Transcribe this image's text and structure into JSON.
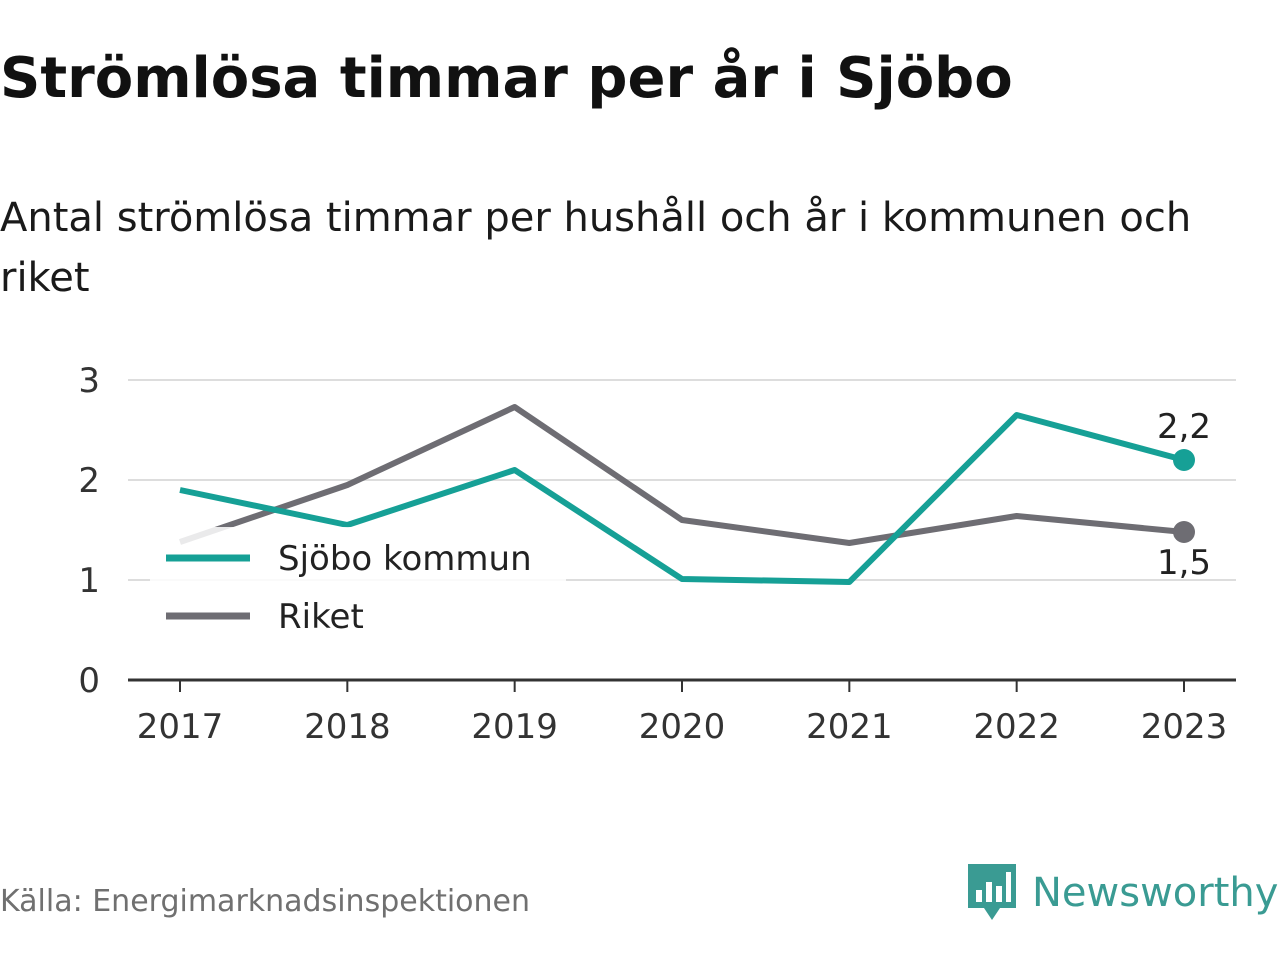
{
  "header": {
    "title": "Strömlösa timmar per år i Sjöbo",
    "subtitle": "Antal strömlösa timmar per hushåll och år i kommunen och riket"
  },
  "footer": {
    "source": "Källa: Energimarknadsinspektionen",
    "brand": "Newsworthy",
    "brand_icon": "newsworthy-logo-icon"
  },
  "colors": {
    "kommun": "#16a096",
    "riket": "#6e6d73",
    "grid": "#dddddd",
    "axis": "#333333",
    "brand": "#3a9b93"
  },
  "chart_data": {
    "type": "line",
    "x": [
      "2017",
      "2018",
      "2019",
      "2020",
      "2021",
      "2022",
      "2023"
    ],
    "series": [
      {
        "name": "Sjöbo kommun",
        "values": [
          1.9,
          1.55,
          2.1,
          1.01,
          0.98,
          2.65,
          2.2
        ]
      },
      {
        "name": "Riket",
        "values": [
          1.38,
          1.95,
          2.73,
          1.6,
          1.37,
          1.64,
          1.48
        ]
      }
    ],
    "ylim": [
      0,
      3
    ],
    "yticks": [
      "0",
      "1",
      "2",
      "3"
    ],
    "end_labels": [
      "2,2",
      "1,5"
    ],
    "legend": "left",
    "grid": true,
    "xlabel": "",
    "ylabel": ""
  }
}
